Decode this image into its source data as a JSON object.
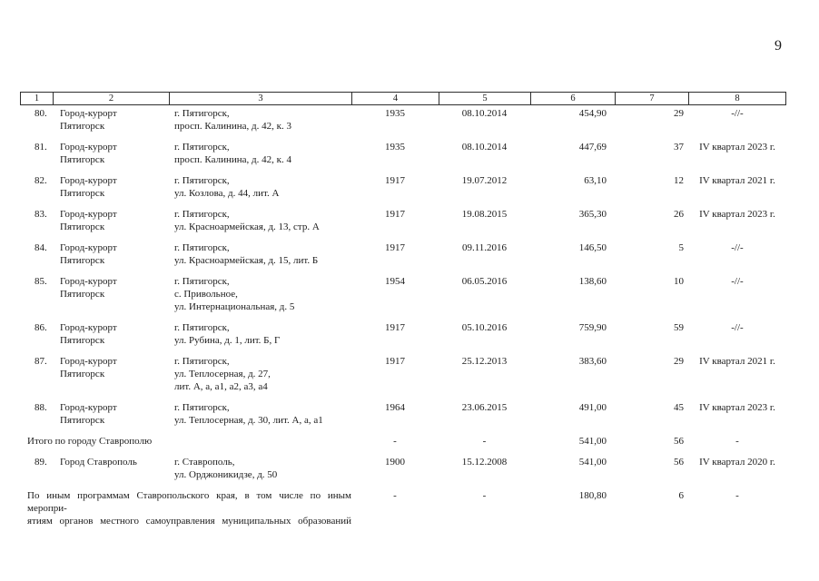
{
  "page_number": "9",
  "colors": {
    "paper": "#ffffff",
    "ink": "#1b1b1b",
    "line": "#2e2e2e"
  },
  "table": {
    "columns": [
      "1",
      "2",
      "3",
      "4",
      "5",
      "6",
      "7",
      "8"
    ],
    "rows": [
      {
        "type": "item",
        "num": "80.",
        "name": [
          "Город-курорт",
          "Пятигорск"
        ],
        "address": [
          "г. Пятигорск,",
          "просп. Калинина, д. 42, к. 3"
        ],
        "year": "1935",
        "date": "08.10.2014",
        "area": "454,90",
        "count": "29",
        "term": "-//-"
      },
      {
        "type": "item",
        "num": "81.",
        "name": [
          "Город-курорт",
          "Пятигорск"
        ],
        "address": [
          "г. Пятигорск,",
          "просп. Калинина, д. 42, к. 4"
        ],
        "year": "1935",
        "date": "08.10.2014",
        "area": "447,69",
        "count": "37",
        "term": "IV квартал 2023 г."
      },
      {
        "type": "item",
        "num": "82.",
        "name": [
          "Город-курорт",
          "Пятигорск"
        ],
        "address": [
          "г. Пятигорск,",
          "ул. Козлова, д. 44, лит. А"
        ],
        "year": "1917",
        "date": "19.07.2012",
        "area": "63,10",
        "count": "12",
        "term": "IV квартал 2021 г."
      },
      {
        "type": "item",
        "num": "83.",
        "name": [
          "Город-курорт",
          "Пятигорск"
        ],
        "address": [
          "г. Пятигорск,",
          "ул. Красноармейская, д. 13, стр. А"
        ],
        "year": "1917",
        "date": "19.08.2015",
        "area": "365,30",
        "count": "26",
        "term": "IV квартал 2023 г."
      },
      {
        "type": "item",
        "num": "84.",
        "name": [
          "Город-курорт",
          "Пятигорск"
        ],
        "address": [
          "г. Пятигорск,",
          "ул. Красноармейская, д. 15, лит. Б"
        ],
        "year": "1917",
        "date": "09.11.2016",
        "area": "146,50",
        "count": "5",
        "term": "-//-"
      },
      {
        "type": "item",
        "num": "85.",
        "name": [
          "Город-курорт",
          "Пятигорск"
        ],
        "address": [
          "г. Пятигорск,",
          "с. Привольное,",
          "ул. Интернациональная, д. 5"
        ],
        "year": "1954",
        "date": "06.05.2016",
        "area": "138,60",
        "count": "10",
        "term": "-//-"
      },
      {
        "type": "item",
        "num": "86.",
        "name": [
          "Город-курорт",
          "Пятигорск"
        ],
        "address": [
          "г. Пятигорск,",
          "ул. Рубина, д. 1, лит. Б, Г"
        ],
        "year": "1917",
        "date": "05.10.2016",
        "area": "759,90",
        "count": "59",
        "term": "-//-"
      },
      {
        "type": "item",
        "num": "87.",
        "name": [
          "Город-курорт",
          "Пятигорск"
        ],
        "address": [
          "г. Пятигорск,",
          "ул. Теплосерная, д. 27,",
          "лит. А, а, а1, а2, а3, а4"
        ],
        "year": "1917",
        "date": "25.12.2013",
        "area": "383,60",
        "count": "29",
        "term": "IV квартал 2021 г."
      },
      {
        "type": "item",
        "num": "88.",
        "name": [
          "Город-курорт",
          "Пятигорск"
        ],
        "address": [
          "г. Пятигорск,",
          "ул. Теплосерная, д. 30, лит. А, а, а1"
        ],
        "year": "1964",
        "date": "23.06.2015",
        "area": "491,00",
        "count": "45",
        "term": "IV квартал 2023 г."
      },
      {
        "type": "summary",
        "label": [
          "Итого по городу Ставрополю"
        ],
        "year": "-",
        "date": "-",
        "area": "541,00",
        "count": "56",
        "term": "-"
      },
      {
        "type": "item",
        "num": "89.",
        "name": [
          "Город Ставрополь"
        ],
        "address": [
          "г. Ставрополь,",
          "ул. Орджоникидзе, д. 50"
        ],
        "year": "1900",
        "date": "15.12.2008",
        "area": "541,00",
        "count": "56",
        "term": "IV квартал 2020 г."
      },
      {
        "type": "summary",
        "justify": true,
        "label": [
          "По иным программам Ставропольского края, в том числе по иным меропри-",
          "ятиям органов местного самоуправления муниципальных образований"
        ],
        "year": "-",
        "date": "-",
        "area": "180,80",
        "count": "6",
        "term": "-"
      }
    ]
  }
}
